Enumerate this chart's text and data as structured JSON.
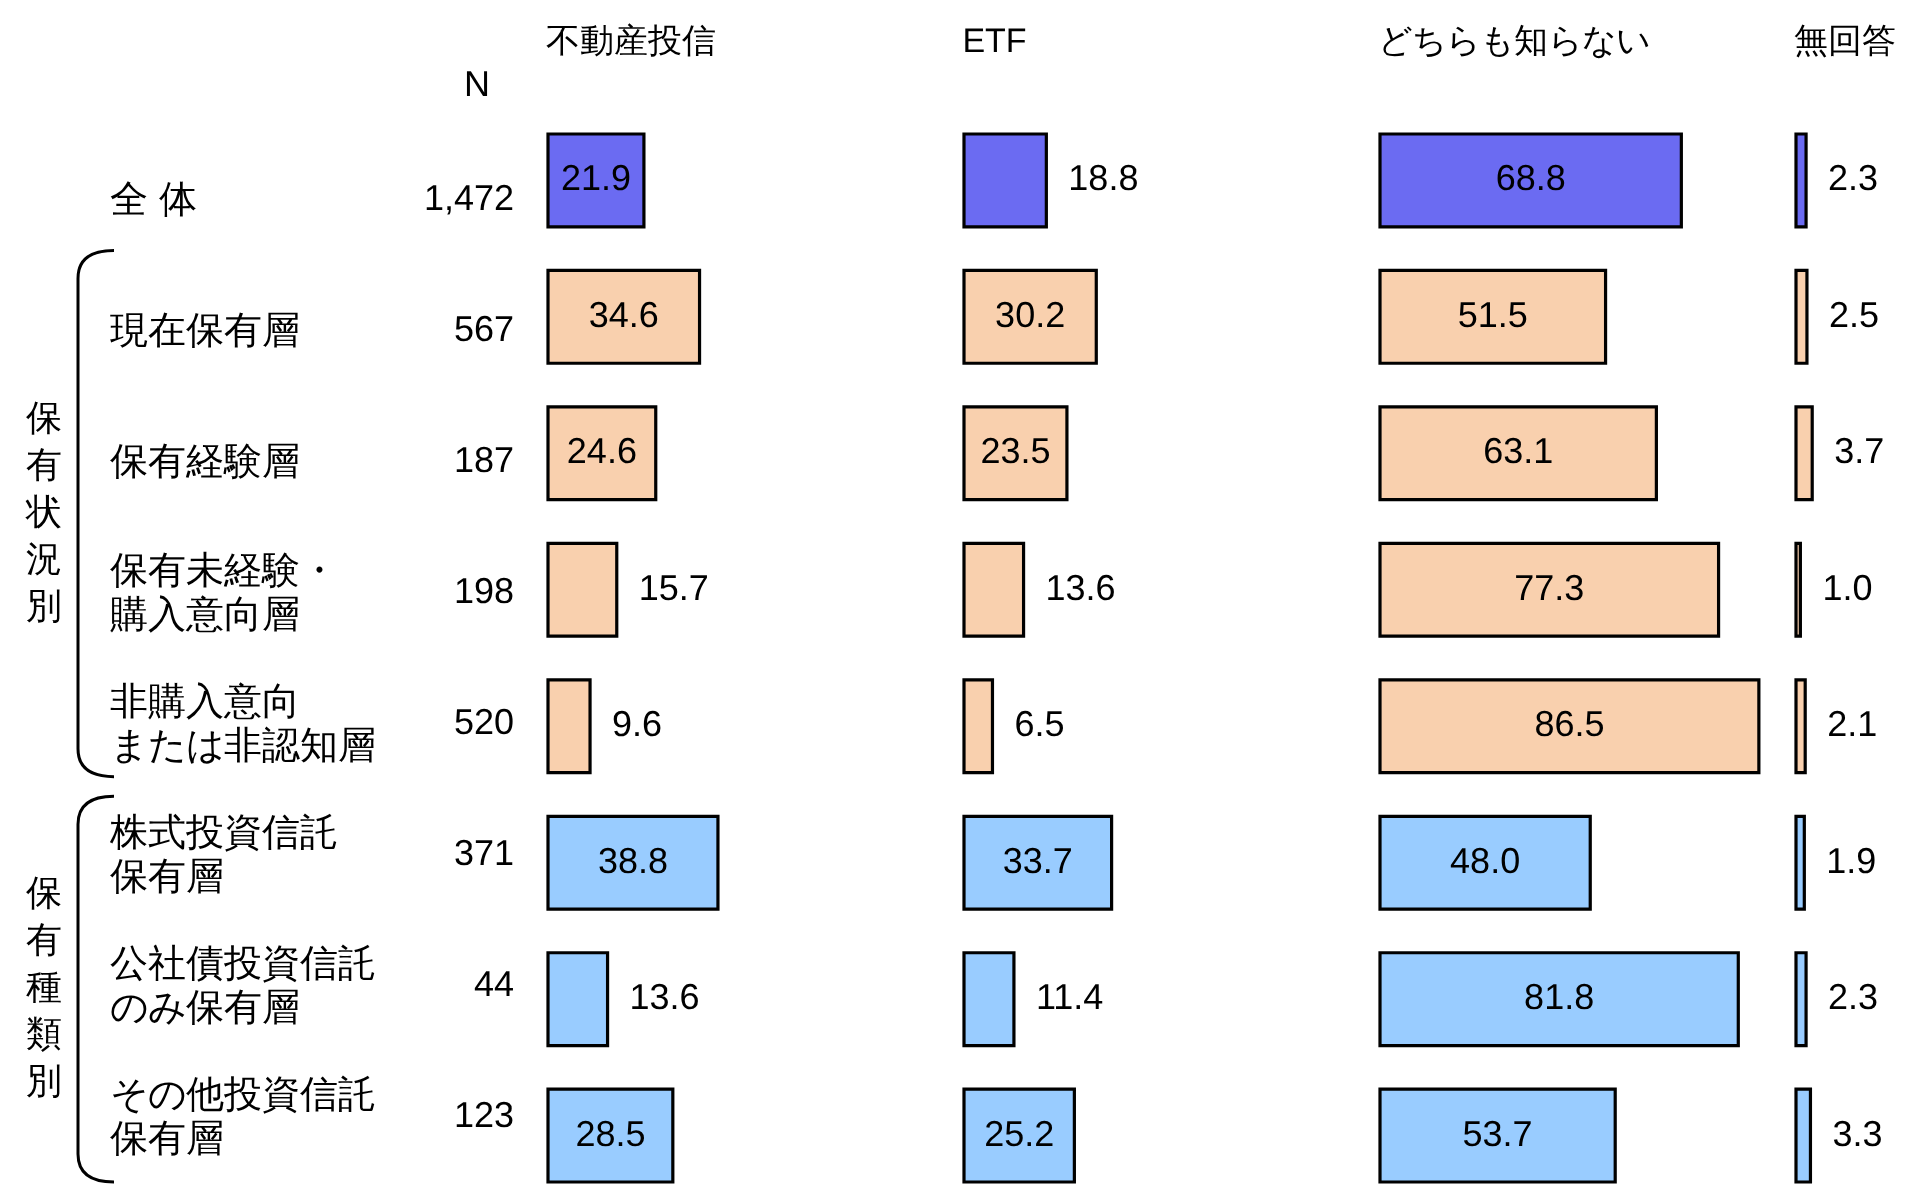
{
  "chart_data": [
    {
      "type": "other",
      "title": "N",
      "categories": [
        "全 体",
        "現在保有層",
        "保有経験層",
        "保有未経験・購入意向層",
        "非購入意向または非認知層",
        "株式投資信託保有層",
        "公社債投資信託のみ保有層",
        "その他投資信託保有層"
      ],
      "values": [
        1472,
        567,
        187,
        198,
        520,
        371,
        44,
        123
      ],
      "value_labels": [
        "1,472",
        "567",
        "187",
        "198",
        "520",
        "371",
        "44",
        "123"
      ],
      "annotations": [
        "保有状況別",
        "保有種類別"
      ]
    },
    {
      "type": "bar",
      "title": "不動産投信",
      "orientation": "horizontal",
      "categories": [
        null,
        null,
        null,
        null,
        null,
        null,
        null,
        null
      ],
      "values": [
        21.9,
        34.6,
        24.6,
        15.7,
        9.6,
        38.8,
        13.6,
        28.5
      ],
      "colors": [
        "#6b6bf2",
        "#f9d0ae",
        "#f9d0ae",
        "#f9d0ae",
        "#f9d0ae",
        "#99ccff",
        "#99ccff",
        "#99ccff"
      ],
      "data_labels": true
    },
    {
      "type": "bar",
      "title": "ETF",
      "orientation": "horizontal",
      "categories": [
        null,
        null,
        null,
        null,
        null,
        null,
        null,
        null
      ],
      "values": [
        18.8,
        30.2,
        23.5,
        13.6,
        6.5,
        33.7,
        11.4,
        25.2
      ],
      "colors": [
        "#6b6bf2",
        "#f9d0ae",
        "#f9d0ae",
        "#f9d0ae",
        "#f9d0ae",
        "#99ccff",
        "#99ccff",
        "#99ccff"
      ],
      "data_labels": true
    },
    {
      "type": "bar",
      "title": "どちらも知らない",
      "orientation": "horizontal",
      "categories": [
        null,
        null,
        null,
        null,
        null,
        null,
        null,
        null
      ],
      "values": [
        68.8,
        51.5,
        63.1,
        77.3,
        86.5,
        48.0,
        81.8,
        53.7
      ],
      "value_labels": [
        "68.8",
        "51.5",
        "63.1",
        "77.3",
        "86.5",
        "48.0",
        "81.8",
        "53.7"
      ],
      "colors": [
        "#6b6bf2",
        "#f9d0ae",
        "#f9d0ae",
        "#f9d0ae",
        "#f9d0ae",
        "#99ccff",
        "#99ccff",
        "#99ccff"
      ]
    },
    {
      "type": "bar",
      "title": "無回答",
      "orientation": "horizontal",
      "categories": [
        null,
        null,
        null,
        null,
        null,
        null,
        null,
        null
      ],
      "values": [
        2.3,
        2.5,
        3.7,
        1.0,
        2.1,
        1.9,
        2.3,
        3.3
      ],
      "value_labels": [
        "2.3",
        "2.5",
        "3.7",
        "1.0",
        "2.1",
        "1.9",
        "2.3",
        "3.3"
      ],
      "colors": [
        "#6b6bf2",
        "#f9d0ae",
        "#f9d0ae",
        "#f9d0ae",
        "#f9d0ae",
        "#99ccff",
        "#99ccff",
        "#99ccff"
      ]
    }
  ]
}
